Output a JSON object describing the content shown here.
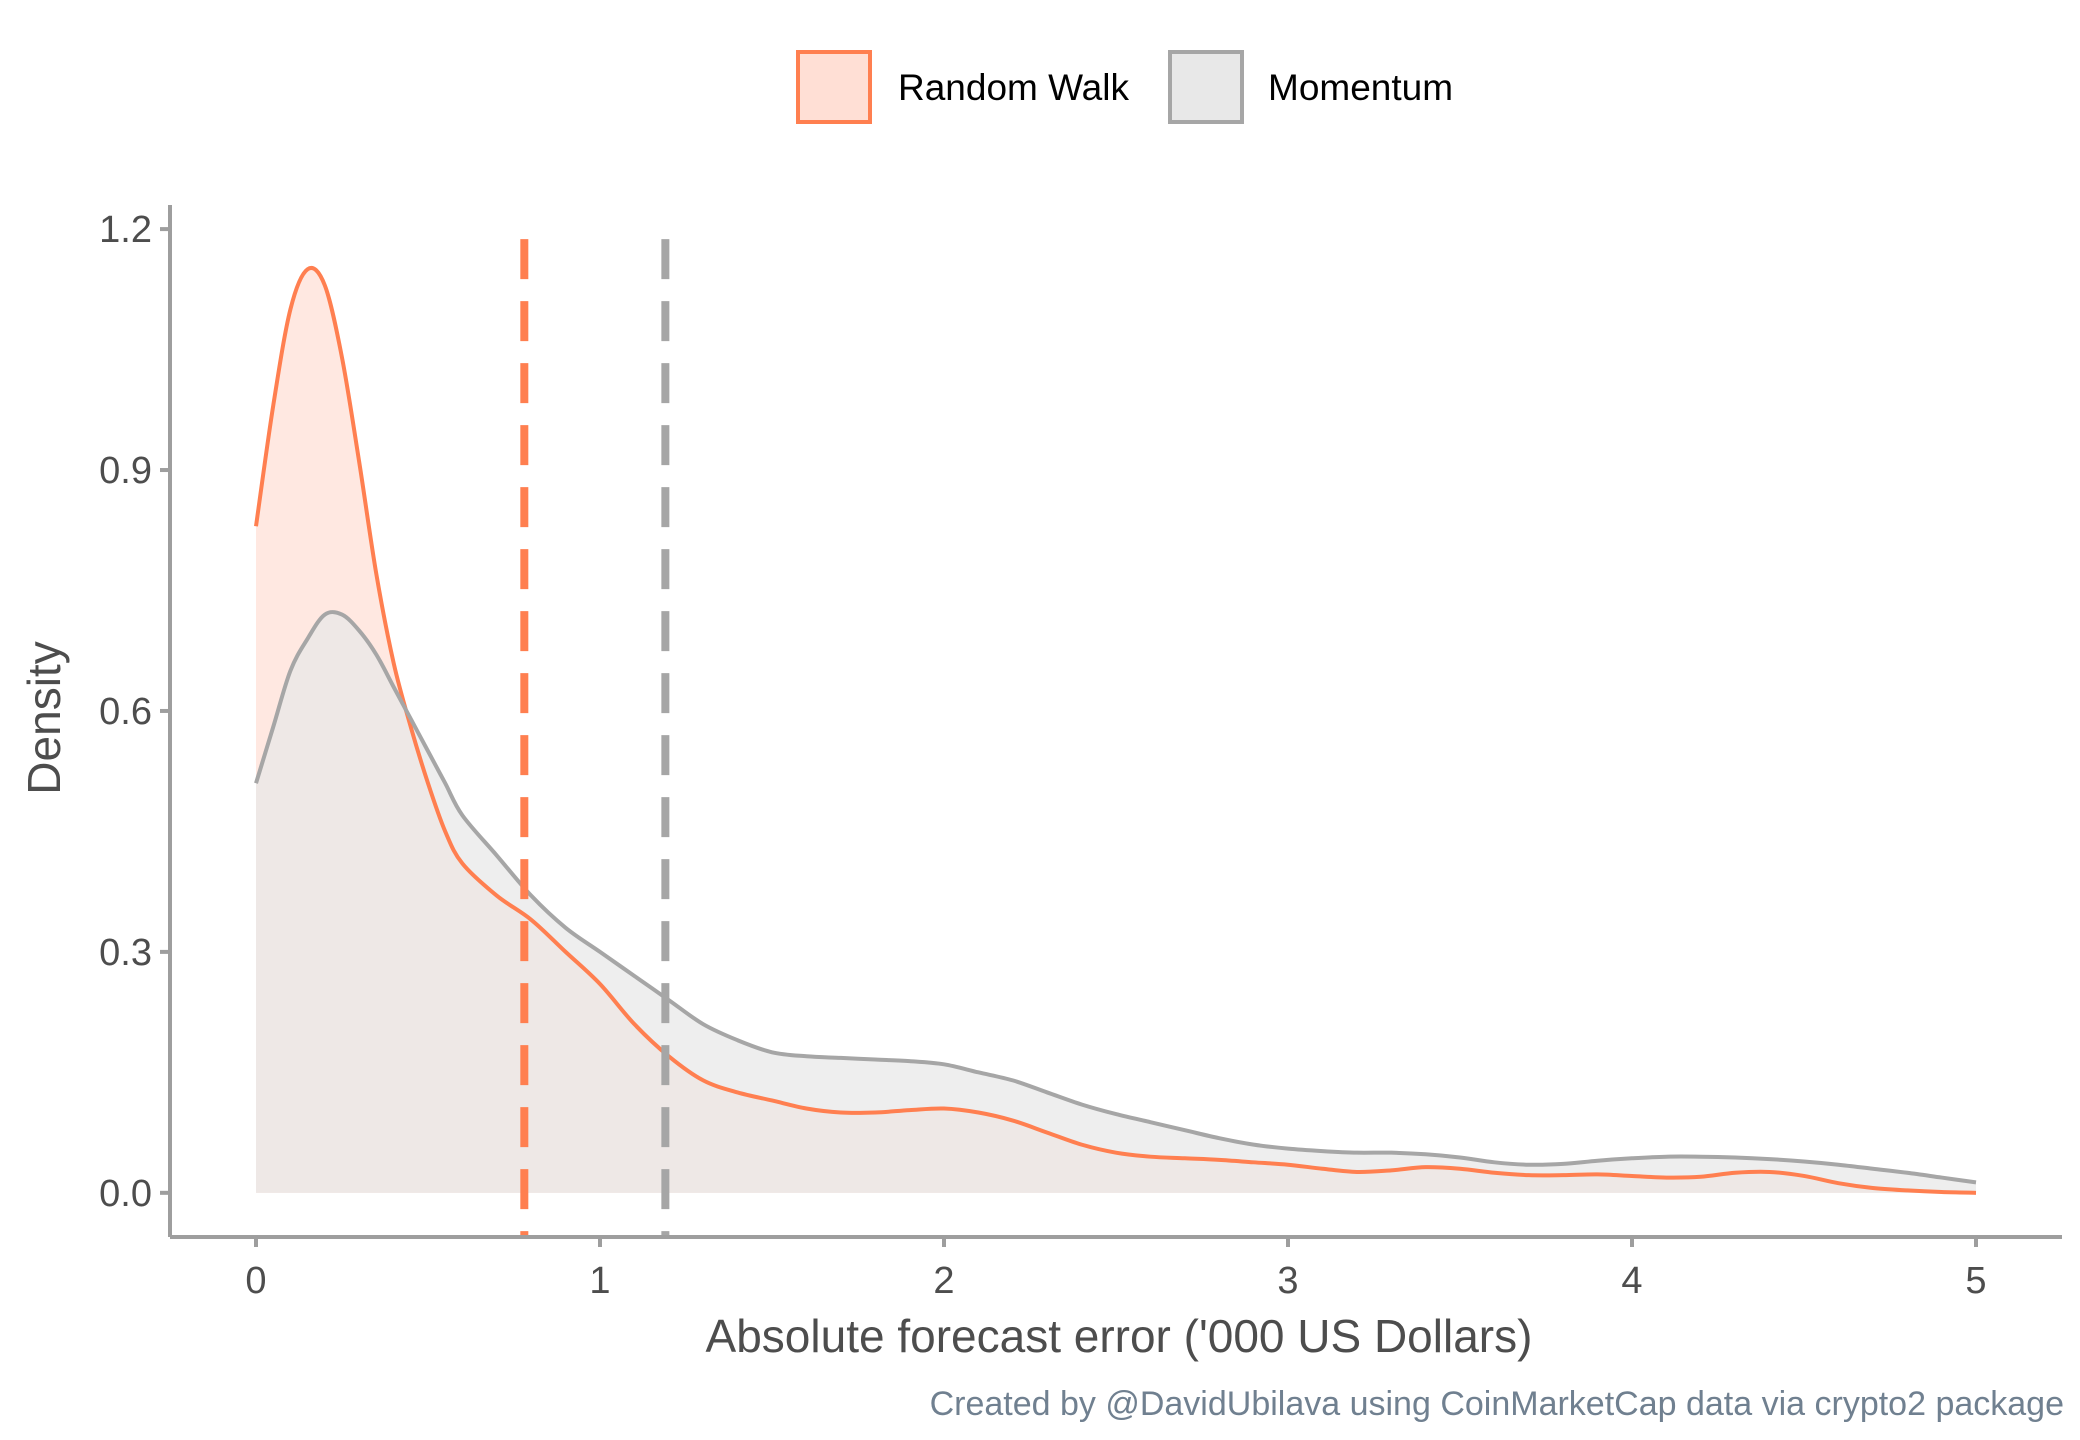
{
  "chart_data": {
    "type": "area",
    "title": "",
    "xlabel": "Absolute forecast error ('000 US Dollars)",
    "ylabel": "Density",
    "caption": "Created by @DavidUbilava using CoinMarketCap data via crypto2 package",
    "xlim": [
      -0.25,
      5.25
    ],
    "ylim": [
      -0.055,
      1.23
    ],
    "x_ticks": [
      0,
      1,
      2,
      3,
      4,
      5
    ],
    "x_tick_labels": [
      "0",
      "1",
      "2",
      "3",
      "4",
      "5"
    ],
    "y_ticks": [
      0.0,
      0.3,
      0.6,
      0.9,
      1.2
    ],
    "y_tick_labels": [
      "0.0",
      "0.3",
      "0.6",
      "0.9",
      "1.2"
    ],
    "grid": false,
    "legend_position": "top",
    "series": [
      {
        "name": "Random Walk",
        "line_color": "#ff7f50",
        "fill_color": "#ffdfd5",
        "mean": 0.78,
        "x": [
          0,
          0.05,
          0.1,
          0.15,
          0.2,
          0.25,
          0.3,
          0.35,
          0.4,
          0.45,
          0.5,
          0.55,
          0.6,
          0.7,
          0.8,
          0.9,
          1.0,
          1.1,
          1.2,
          1.3,
          1.4,
          1.5,
          1.6,
          1.7,
          1.8,
          1.9,
          2.0,
          2.1,
          2.2,
          2.3,
          2.4,
          2.5,
          2.6,
          2.7,
          2.8,
          2.9,
          3.0,
          3.1,
          3.2,
          3.3,
          3.4,
          3.5,
          3.6,
          3.7,
          3.8,
          3.9,
          4.0,
          4.1,
          4.2,
          4.3,
          4.4,
          4.5,
          4.6,
          4.7,
          4.8,
          4.9,
          5.0
        ],
        "y": [
          0.83,
          0.98,
          1.1,
          1.15,
          1.13,
          1.04,
          0.91,
          0.77,
          0.66,
          0.58,
          0.51,
          0.45,
          0.41,
          0.37,
          0.34,
          0.3,
          0.26,
          0.21,
          0.17,
          0.14,
          0.125,
          0.115,
          0.105,
          0.1,
          0.1,
          0.103,
          0.105,
          0.1,
          0.09,
          0.075,
          0.06,
          0.05,
          0.045,
          0.043,
          0.041,
          0.038,
          0.035,
          0.03,
          0.026,
          0.028,
          0.032,
          0.03,
          0.025,
          0.022,
          0.022,
          0.023,
          0.021,
          0.019,
          0.02,
          0.025,
          0.026,
          0.021,
          0.012,
          0.006,
          0.003,
          0.001,
          0.0
        ]
      },
      {
        "name": "Momentum",
        "line_color": "#a6a6a6",
        "fill_color": "#e8e8e8",
        "mean": 1.19,
        "x": [
          0,
          0.05,
          0.1,
          0.15,
          0.2,
          0.25,
          0.3,
          0.35,
          0.4,
          0.45,
          0.5,
          0.55,
          0.6,
          0.7,
          0.8,
          0.9,
          1.0,
          1.1,
          1.2,
          1.3,
          1.4,
          1.5,
          1.6,
          1.7,
          1.8,
          1.9,
          2.0,
          2.1,
          2.2,
          2.3,
          2.4,
          2.5,
          2.6,
          2.7,
          2.8,
          2.9,
          3.0,
          3.1,
          3.2,
          3.3,
          3.4,
          3.5,
          3.6,
          3.7,
          3.8,
          3.9,
          4.0,
          4.1,
          4.2,
          4.3,
          4.4,
          4.5,
          4.6,
          4.7,
          4.8,
          4.9,
          5.0
        ],
        "y": [
          0.51,
          0.58,
          0.65,
          0.69,
          0.72,
          0.72,
          0.7,
          0.67,
          0.63,
          0.59,
          0.55,
          0.51,
          0.47,
          0.42,
          0.37,
          0.33,
          0.3,
          0.27,
          0.24,
          0.21,
          0.19,
          0.175,
          0.17,
          0.168,
          0.166,
          0.164,
          0.16,
          0.15,
          0.14,
          0.125,
          0.11,
          0.098,
          0.088,
          0.078,
          0.068,
          0.06,
          0.055,
          0.052,
          0.05,
          0.05,
          0.048,
          0.044,
          0.038,
          0.035,
          0.036,
          0.04,
          0.043,
          0.045,
          0.045,
          0.044,
          0.042,
          0.039,
          0.035,
          0.03,
          0.025,
          0.019,
          0.013
        ]
      }
    ]
  }
}
